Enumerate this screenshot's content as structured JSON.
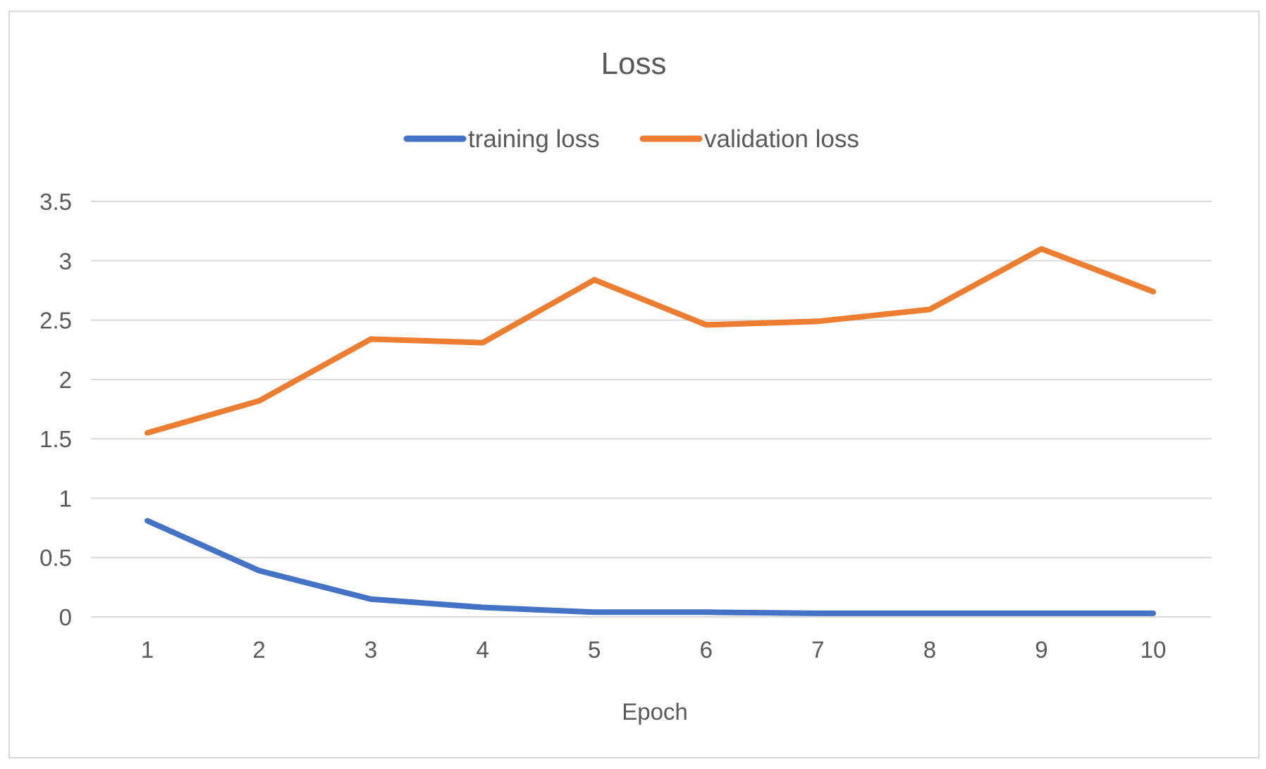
{
  "chart_data": {
    "type": "line",
    "title": "Loss",
    "xlabel": "Epoch",
    "ylabel": "",
    "categories": [
      "1",
      "2",
      "3",
      "4",
      "5",
      "6",
      "7",
      "8",
      "9",
      "10"
    ],
    "ylim": [
      0,
      3.5
    ],
    "yticks": [
      "0",
      "0.5",
      "1",
      "1.5",
      "2",
      "2.5",
      "3",
      "3.5"
    ],
    "grid": true,
    "legend_position": "top",
    "series": [
      {
        "name": "training loss",
        "color": "#4472c4",
        "values": [
          0.81,
          0.39,
          0.15,
          0.08,
          0.04,
          0.04,
          0.03,
          0.03,
          0.03,
          0.03
        ]
      },
      {
        "name": "validation loss",
        "color": "#ed7d31",
        "values": [
          1.55,
          1.82,
          2.34,
          2.31,
          2.84,
          2.46,
          2.49,
          2.59,
          3.1,
          2.74
        ]
      }
    ]
  }
}
